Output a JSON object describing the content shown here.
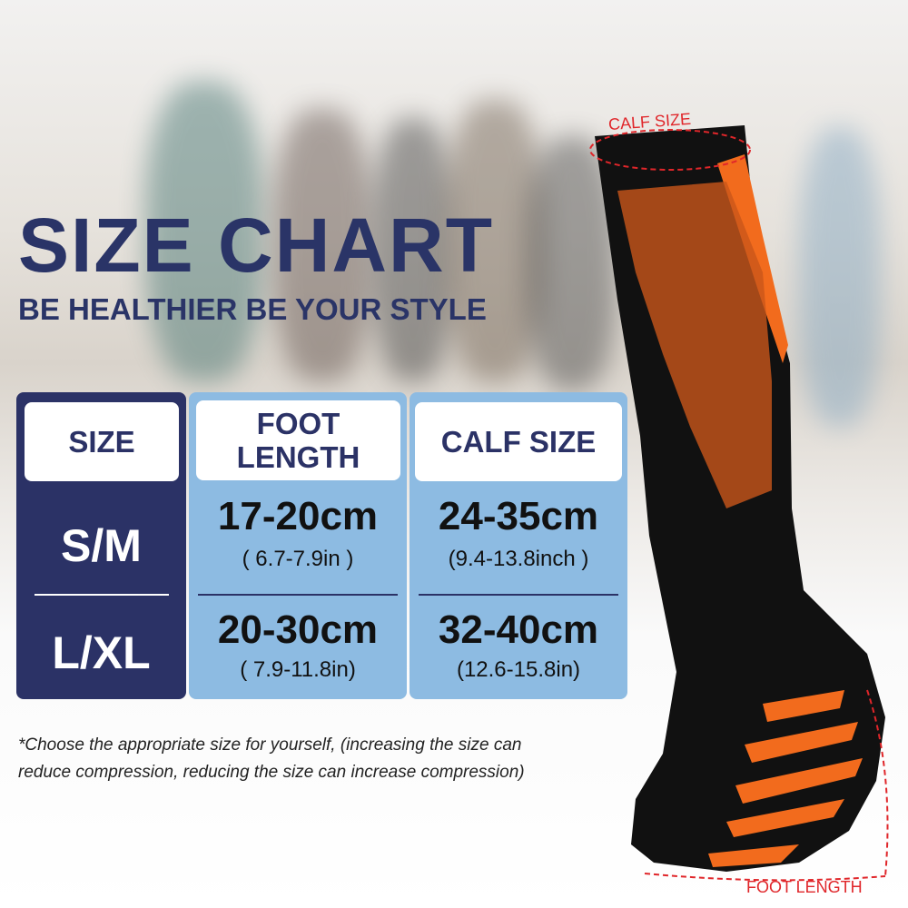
{
  "title": "SIZE CHART",
  "subtitle": "BE HEALTHIER BE YOUR STYLE",
  "table": {
    "headers": [
      "SIZE",
      "FOOT LENGTH",
      "CALF SIZE"
    ],
    "rows": [
      {
        "size": "S/M",
        "foot_cm": "17-20cm",
        "foot_in": "( 6.7-7.9in )",
        "calf_cm": "24-35cm",
        "calf_in": "(9.4-13.8inch )"
      },
      {
        "size": "L/XL",
        "foot_cm": "20-30cm",
        "foot_in": "( 7.9-11.8in)",
        "calf_cm": "32-40cm",
        "calf_in": "(12.6-15.8in)"
      }
    ]
  },
  "note_line1": "*Choose the appropriate size for yourself, (increasing the size can",
  "note_line2": "reduce compression, reducing the size can increase compression)",
  "calf_label": "CALF SIZE",
  "foot_label": "FOOT LENGTH",
  "colors": {
    "navy": "#2b3266",
    "light_blue": "#8dbbe2",
    "orange": "#f26b1d",
    "annotation_red": "#e0262a"
  }
}
